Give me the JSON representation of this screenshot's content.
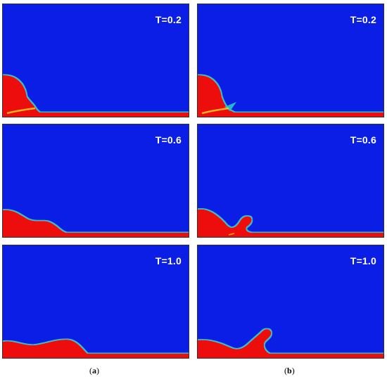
{
  "columns": [
    {
      "caption_open": "(",
      "caption_letter": "a",
      "caption_close": ")"
    },
    {
      "caption_open": "(",
      "caption_letter": "b",
      "caption_close": ")"
    }
  ],
  "time_labels": [
    "T=0.2",
    "T=0.6",
    "T=1.0"
  ],
  "colors": {
    "background_phase": "#0b1ee6",
    "liquid_phase": "#ee1010",
    "interface": "#27c6c9"
  }
}
